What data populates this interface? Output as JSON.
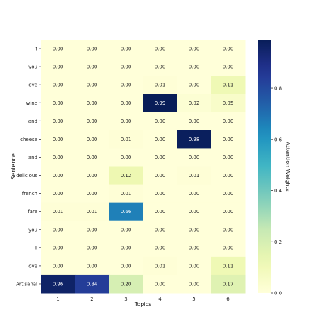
{
  "chart_data": {
    "type": "heatmap",
    "title": "",
    "xlabel": "Topics",
    "ylabel": "Sentence",
    "colorbar_label": "Attention Weights",
    "colormap": "YlGnBu",
    "vmin": 0.0,
    "vmax": 0.99,
    "colorbar_ticks": [
      "0.0",
      "0.2",
      "0.4",
      "0.6",
      "0.8"
    ],
    "colorbar_tick_values": [
      0.0,
      0.2,
      0.4,
      0.6,
      0.8
    ],
    "x_categories": [
      "1",
      "2",
      "3",
      "4",
      "5",
      "6"
    ],
    "y_categories": [
      "If",
      "you",
      "love",
      "wine",
      "and",
      "cheese",
      "and",
      "delicious",
      "french",
      "fare",
      "you",
      "ll",
      "love",
      "Artisanal"
    ],
    "values": [
      [
        0.0,
        0.0,
        0.0,
        0.0,
        0.0,
        0.0
      ],
      [
        0.0,
        0.0,
        0.0,
        0.0,
        0.0,
        0.0
      ],
      [
        0.0,
        0.0,
        0.0,
        0.01,
        0.0,
        0.11
      ],
      [
        0.0,
        0.0,
        0.0,
        0.99,
        0.02,
        0.05
      ],
      [
        0.0,
        0.0,
        0.0,
        0.0,
        0.0,
        0.0
      ],
      [
        0.0,
        0.0,
        0.01,
        0.0,
        0.98,
        0.0
      ],
      [
        0.0,
        0.0,
        0.0,
        0.0,
        0.0,
        0.0
      ],
      [
        0.0,
        0.0,
        0.12,
        0.0,
        0.01,
        0.0
      ],
      [
        0.0,
        0.0,
        0.01,
        0.0,
        0.0,
        0.0
      ],
      [
        0.01,
        0.01,
        0.66,
        0.0,
        0.0,
        0.0
      ],
      [
        0.0,
        0.0,
        0.0,
        0.0,
        0.0,
        0.0
      ],
      [
        0.0,
        0.0,
        0.0,
        0.0,
        0.0,
        0.0
      ],
      [
        0.0,
        0.0,
        0.0,
        0.01,
        0.0,
        0.11
      ],
      [
        0.96,
        0.84,
        0.2,
        0.0,
        0.0,
        0.17
      ]
    ],
    "value_labels": [
      [
        "0.00",
        "0.00",
        "0.00",
        "0.00",
        "0.00",
        "0.00"
      ],
      [
        "0.00",
        "0.00",
        "0.00",
        "0.00",
        "0.00",
        "0.00"
      ],
      [
        "0.00",
        "0.00",
        "0.00",
        "0.01",
        "0.00",
        "0.11"
      ],
      [
        "0.00",
        "0.00",
        "0.00",
        "0.99",
        "0.02",
        "0.05"
      ],
      [
        "0.00",
        "0.00",
        "0.00",
        "0.00",
        "0.00",
        "0.00"
      ],
      [
        "0.00",
        "0.00",
        "0.01",
        "0.00",
        "0.98",
        "0.00"
      ],
      [
        "0.00",
        "0.00",
        "0.00",
        "0.00",
        "0.00",
        "0.00"
      ],
      [
        "0.00",
        "0.00",
        "0.12",
        "0.00",
        "0.01",
        "0.00"
      ],
      [
        "0.00",
        "0.00",
        "0.01",
        "0.00",
        "0.00",
        "0.00"
      ],
      [
        "0.01",
        "0.01",
        "0.66",
        "0.00",
        "0.00",
        "0.00"
      ],
      [
        "0.00",
        "0.00",
        "0.00",
        "0.00",
        "0.00",
        "0.00"
      ],
      [
        "0.00",
        "0.00",
        "0.00",
        "0.00",
        "0.00",
        "0.00"
      ],
      [
        "0.00",
        "0.00",
        "0.00",
        "0.01",
        "0.00",
        "0.11"
      ],
      [
        "0.96",
        "0.84",
        "0.20",
        "0.00",
        "0.00",
        "0.17"
      ]
    ],
    "grid": false,
    "colorbar_position": "right"
  }
}
